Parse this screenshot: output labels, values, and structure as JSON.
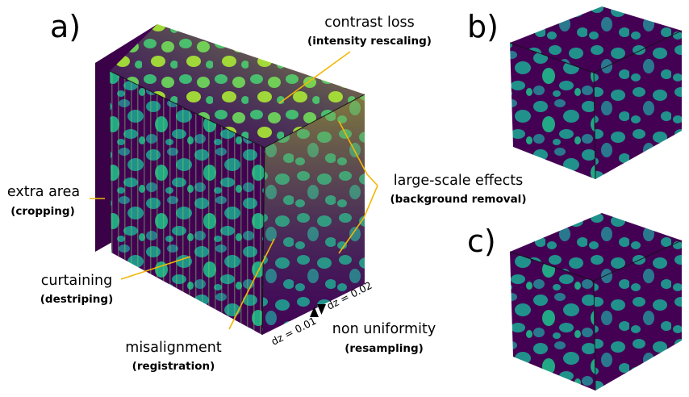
{
  "panels": {
    "a": "a)",
    "b": "b)",
    "c": "c)"
  },
  "annotations": {
    "contrast_loss": {
      "label": "contrast loss",
      "method": "(intensity rescaling)"
    },
    "extra_area": {
      "label": "extra area",
      "method": "(cropping)"
    },
    "large_scale": {
      "label": "large-scale effects",
      "method": "(background removal)"
    },
    "curtaining": {
      "label": "curtaining",
      "method": "(destriping)"
    },
    "misalignment": {
      "label": "misalignment",
      "method": "(registration)"
    },
    "non_uniformity": {
      "label": "non uniformity",
      "method": "(resampling)"
    }
  },
  "slice_spacing": {
    "left": "dz = 0.01",
    "right": "dz = 0.02"
  },
  "colors": {
    "matrix": "#440154",
    "phase": "#21918c",
    "phase_light": "#35b779",
    "highlight": "#b5de2b",
    "highlight_bright": "#fde725",
    "leader_line": "#f2b705"
  }
}
